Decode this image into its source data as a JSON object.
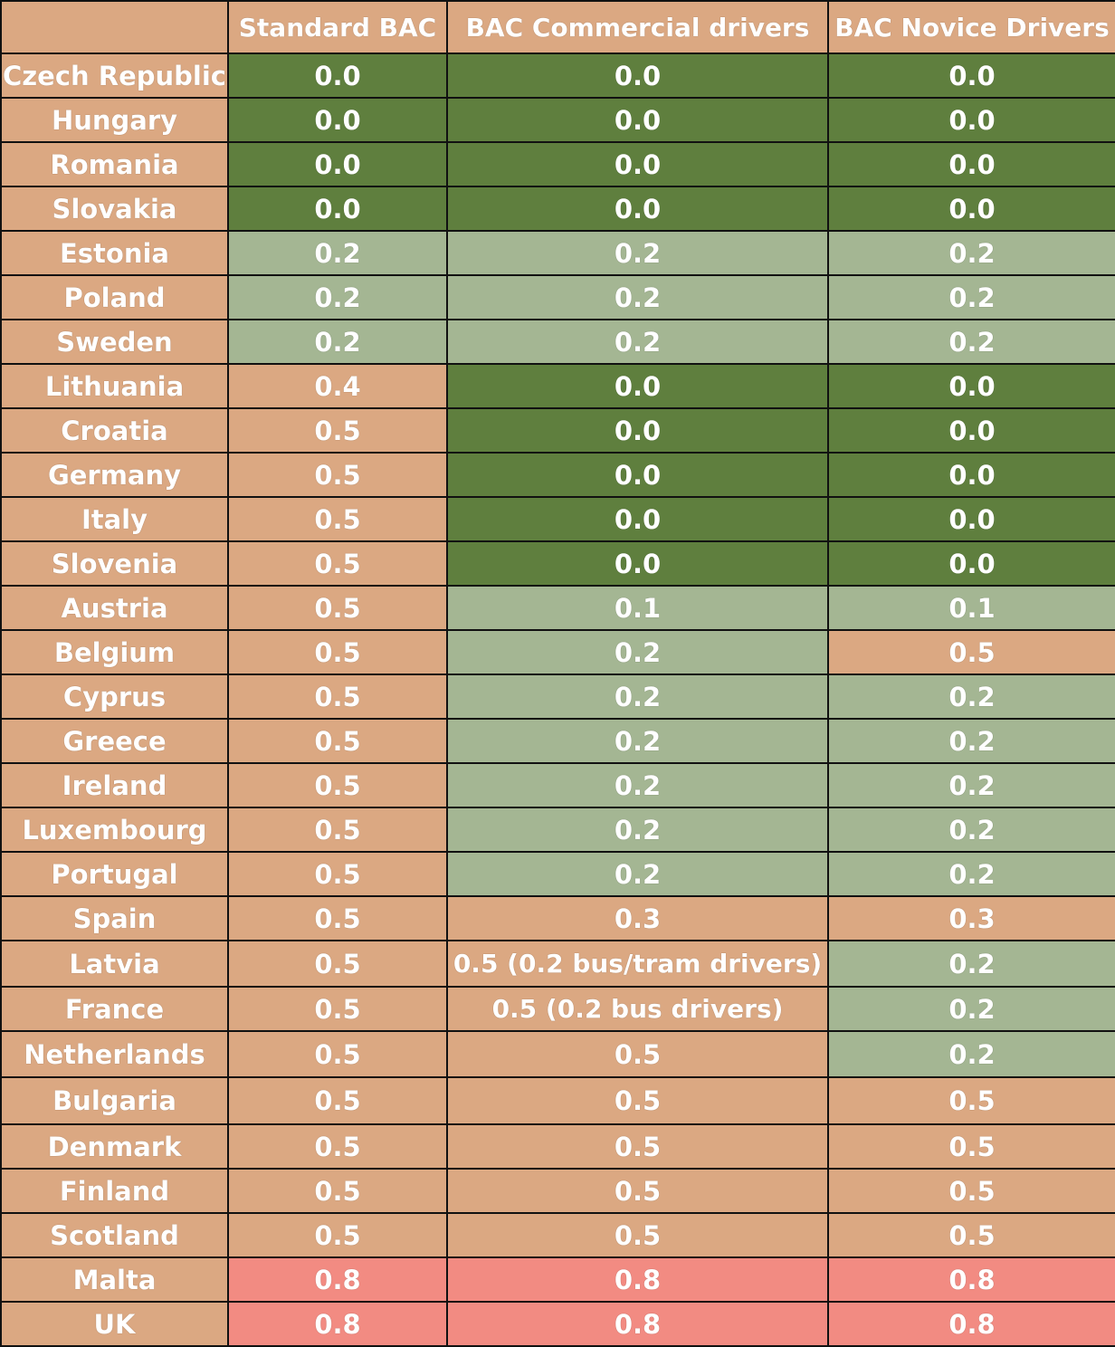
{
  "chart_data": {
    "type": "table",
    "columns": [
      "Standard BAC",
      "BAC Commercial drivers",
      "BAC Novice Drivers"
    ],
    "colors": {
      "header": "#dba882",
      "zero": "#5f7f3e",
      "low": "#a4b693",
      "mid": "#dba882",
      "high": "#f28b82"
    },
    "rows": [
      {
        "country": "Czech Republic",
        "values": [
          "0.0",
          "0.0",
          "0.0"
        ],
        "levels": [
          "zero",
          "zero",
          "zero"
        ]
      },
      {
        "country": "Hungary",
        "values": [
          "0.0",
          "0.0",
          "0.0"
        ],
        "levels": [
          "zero",
          "zero",
          "zero"
        ]
      },
      {
        "country": "Romania",
        "values": [
          "0.0",
          "0.0",
          "0.0"
        ],
        "levels": [
          "zero",
          "zero",
          "zero"
        ]
      },
      {
        "country": "Slovakia",
        "values": [
          "0.0",
          "0.0",
          "0.0"
        ],
        "levels": [
          "zero",
          "zero",
          "zero"
        ]
      },
      {
        "country": "Estonia",
        "values": [
          "0.2",
          "0.2",
          "0.2"
        ],
        "levels": [
          "low",
          "low",
          "low"
        ]
      },
      {
        "country": "Poland",
        "values": [
          "0.2",
          "0.2",
          "0.2"
        ],
        "levels": [
          "low",
          "low",
          "low"
        ]
      },
      {
        "country": "Sweden",
        "values": [
          "0.2",
          "0.2",
          "0.2"
        ],
        "levels": [
          "low",
          "low",
          "low"
        ]
      },
      {
        "country": "Lithuania",
        "values": [
          "0.4",
          "0.0",
          "0.0"
        ],
        "levels": [
          "mid",
          "zero",
          "zero"
        ]
      },
      {
        "country": "Croatia",
        "values": [
          "0.5",
          "0.0",
          "0.0"
        ],
        "levels": [
          "mid",
          "zero",
          "zero"
        ]
      },
      {
        "country": "Germany",
        "values": [
          "0.5",
          "0.0",
          "0.0"
        ],
        "levels": [
          "mid",
          "zero",
          "zero"
        ]
      },
      {
        "country": "Italy",
        "values": [
          "0.5",
          "0.0",
          "0.0"
        ],
        "levels": [
          "mid",
          "zero",
          "zero"
        ]
      },
      {
        "country": "Slovenia",
        "values": [
          "0.5",
          "0.0",
          "0.0"
        ],
        "levels": [
          "mid",
          "zero",
          "zero"
        ]
      },
      {
        "country": "Austria",
        "values": [
          "0.5",
          "0.1",
          "0.1"
        ],
        "levels": [
          "mid",
          "low",
          "low"
        ]
      },
      {
        "country": "Belgium",
        "values": [
          "0.5",
          "0.2",
          "0.5"
        ],
        "levels": [
          "mid",
          "low",
          "mid"
        ]
      },
      {
        "country": "Cyprus",
        "values": [
          "0.5",
          "0.2",
          "0.2"
        ],
        "levels": [
          "mid",
          "low",
          "low"
        ]
      },
      {
        "country": "Greece",
        "values": [
          "0.5",
          "0.2",
          "0.2"
        ],
        "levels": [
          "mid",
          "low",
          "low"
        ]
      },
      {
        "country": "Ireland",
        "values": [
          "0.5",
          "0.2",
          "0.2"
        ],
        "levels": [
          "mid",
          "low",
          "low"
        ]
      },
      {
        "country": "Luxembourg",
        "values": [
          "0.5",
          "0.2",
          "0.2"
        ],
        "levels": [
          "mid",
          "low",
          "low"
        ]
      },
      {
        "country": "Portugal",
        "values": [
          "0.5",
          "0.2",
          "0.2"
        ],
        "levels": [
          "mid",
          "low",
          "low"
        ]
      },
      {
        "country": "Spain",
        "values": [
          "0.5",
          "0.3",
          "0.3"
        ],
        "levels": [
          "mid",
          "mid",
          "mid"
        ]
      },
      {
        "country": "Latvia",
        "values": [
          "0.5",
          "0.5 (0.2 bus/tram drivers)",
          "0.2"
        ],
        "levels": [
          "mid",
          "mid",
          "low"
        ]
      },
      {
        "country": "France",
        "values": [
          "0.5",
          "0.5 (0.2 bus drivers)",
          "0.2"
        ],
        "levels": [
          "mid",
          "mid",
          "low"
        ]
      },
      {
        "country": "Netherlands",
        "values": [
          "0.5",
          "0.5",
          "0.2"
        ],
        "levels": [
          "mid",
          "mid",
          "low"
        ]
      },
      {
        "country": "Bulgaria",
        "values": [
          "0.5",
          "0.5",
          "0.5"
        ],
        "levels": [
          "mid",
          "mid",
          "mid"
        ]
      },
      {
        "country": "Denmark",
        "values": [
          "0.5",
          "0.5",
          "0.5"
        ],
        "levels": [
          "mid",
          "mid",
          "mid"
        ]
      },
      {
        "country": "Finland",
        "values": [
          "0.5",
          "0.5",
          "0.5"
        ],
        "levels": [
          "mid",
          "mid",
          "mid"
        ]
      },
      {
        "country": "Scotland",
        "values": [
          "0.5",
          "0.5",
          "0.5"
        ],
        "levels": [
          "mid",
          "mid",
          "mid"
        ]
      },
      {
        "country": "Malta",
        "values": [
          "0.8",
          "0.8",
          "0.8"
        ],
        "levels": [
          "high",
          "high",
          "high"
        ]
      },
      {
        "country": "UK",
        "values": [
          "0.8",
          "0.8",
          "0.8"
        ],
        "levels": [
          "high",
          "high",
          "high"
        ]
      }
    ]
  }
}
